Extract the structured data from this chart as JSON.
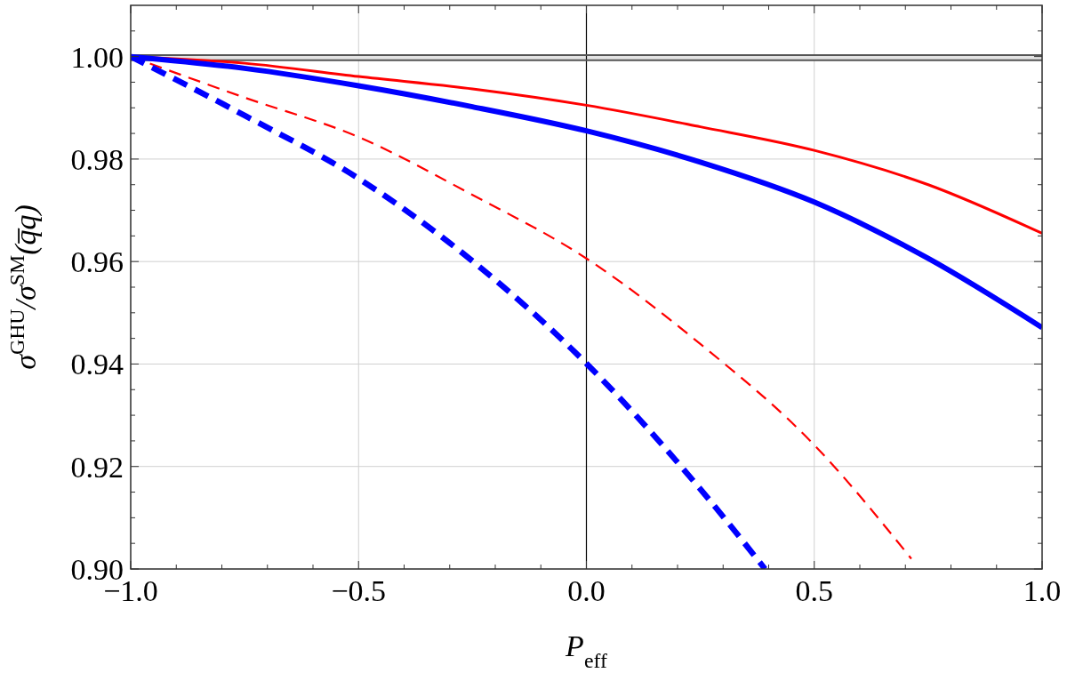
{
  "chart_data": {
    "type": "line",
    "xlabel": "P$_{eff}$",
    "ylabel": "σ$^{GHU}$/σ$^{SM}$(q̅q)",
    "xlim": [
      -1,
      1
    ],
    "ylim": [
      0.9,
      1.01
    ],
    "xticks": [
      {
        "value": -1,
        "label": "−1.0"
      },
      {
        "value": -0.9,
        "label": null
      },
      {
        "value": -0.8,
        "label": null
      },
      {
        "value": -0.7,
        "label": null
      },
      {
        "value": -0.6,
        "label": null
      },
      {
        "value": -0.5,
        "label": "−0.5"
      },
      {
        "value": -0.4,
        "label": null
      },
      {
        "value": -0.3,
        "label": null
      },
      {
        "value": -0.2,
        "label": null
      },
      {
        "value": -0.1,
        "label": null
      },
      {
        "value": 0,
        "label": "0.0"
      },
      {
        "value": 0.1,
        "label": null
      },
      {
        "value": 0.2,
        "label": null
      },
      {
        "value": 0.3,
        "label": null
      },
      {
        "value": 0.4,
        "label": null
      },
      {
        "value": 0.5,
        "label": "0.5"
      },
      {
        "value": 0.6,
        "label": null
      },
      {
        "value": 0.7,
        "label": null
      },
      {
        "value": 0.8,
        "label": null
      },
      {
        "value": 0.9,
        "label": null
      },
      {
        "value": 1,
        "label": "1.0"
      }
    ],
    "yticks": [
      {
        "value": 0.9,
        "label": "0.90"
      },
      {
        "value": 0.905,
        "label": null
      },
      {
        "value": 0.91,
        "label": null
      },
      {
        "value": 0.915,
        "label": null
      },
      {
        "value": 0.92,
        "label": "0.92"
      },
      {
        "value": 0.925,
        "label": null
      },
      {
        "value": 0.93,
        "label": null
      },
      {
        "value": 0.935,
        "label": null
      },
      {
        "value": 0.94,
        "label": "0.94"
      },
      {
        "value": 0.945,
        "label": null
      },
      {
        "value": 0.95,
        "label": null
      },
      {
        "value": 0.955,
        "label": null
      },
      {
        "value": 0.96,
        "label": "0.96"
      },
      {
        "value": 0.965,
        "label": null
      },
      {
        "value": 0.97,
        "label": null
      },
      {
        "value": 0.975,
        "label": null
      },
      {
        "value": 0.98,
        "label": "0.98"
      },
      {
        "value": 0.985,
        "label": null
      },
      {
        "value": 0.99,
        "label": null
      },
      {
        "value": 0.995,
        "label": null
      },
      {
        "value": 1,
        "label": "1.00"
      },
      {
        "value": 1.005,
        "label": null
      }
    ],
    "grid": true,
    "bands": [
      {
        "axis": "y",
        "from": 0.9993,
        "to": 1.0003,
        "color": "#e4e4e4"
      }
    ],
    "ref_lines": [
      {
        "axis": "x",
        "value": 0,
        "color": "#000000"
      },
      {
        "axis": "y",
        "value": 1.0003,
        "color": "#555555"
      },
      {
        "axis": "y",
        "value": 0.9993,
        "color": "#555555"
      }
    ],
    "series": [
      {
        "color": "#ff0000",
        "line_style": "solid",
        "x": [
          -1,
          -0.75,
          -0.5,
          -0.25,
          0,
          0.25,
          0.5,
          0.75,
          1
        ],
        "values": [
          1.0,
          0.9987,
          0.9961,
          0.9937,
          0.9905,
          0.9863,
          0.9817,
          0.975,
          0.9655
        ]
      },
      {
        "color": "#0000ff",
        "line_style": "solid",
        "x": [
          -1,
          -0.75,
          -0.5,
          -0.25,
          0,
          0.25,
          0.5,
          0.75,
          1
        ],
        "values": [
          1.0,
          0.9977,
          0.9943,
          0.9902,
          0.9855,
          0.9794,
          0.9716,
          0.9606,
          0.9471
        ]
      },
      {
        "color": "#ff0000",
        "line_style": "dashed",
        "x": [
          -1,
          -0.75,
          -0.5,
          -0.25,
          0,
          0.25,
          0.5,
          0.713
        ],
        "values": [
          1.0,
          0.992,
          0.9843,
          0.973,
          0.9606,
          0.9439,
          0.9242,
          0.902
        ]
      },
      {
        "color": "#0000ff",
        "line_style": "dashed",
        "x": [
          -1,
          -0.75,
          -0.5,
          -0.25,
          0,
          0.25,
          0.392
        ],
        "values": [
          1.0,
          0.9885,
          0.9762,
          0.9601,
          0.9401,
          0.9156,
          0.9
        ]
      }
    ]
  }
}
